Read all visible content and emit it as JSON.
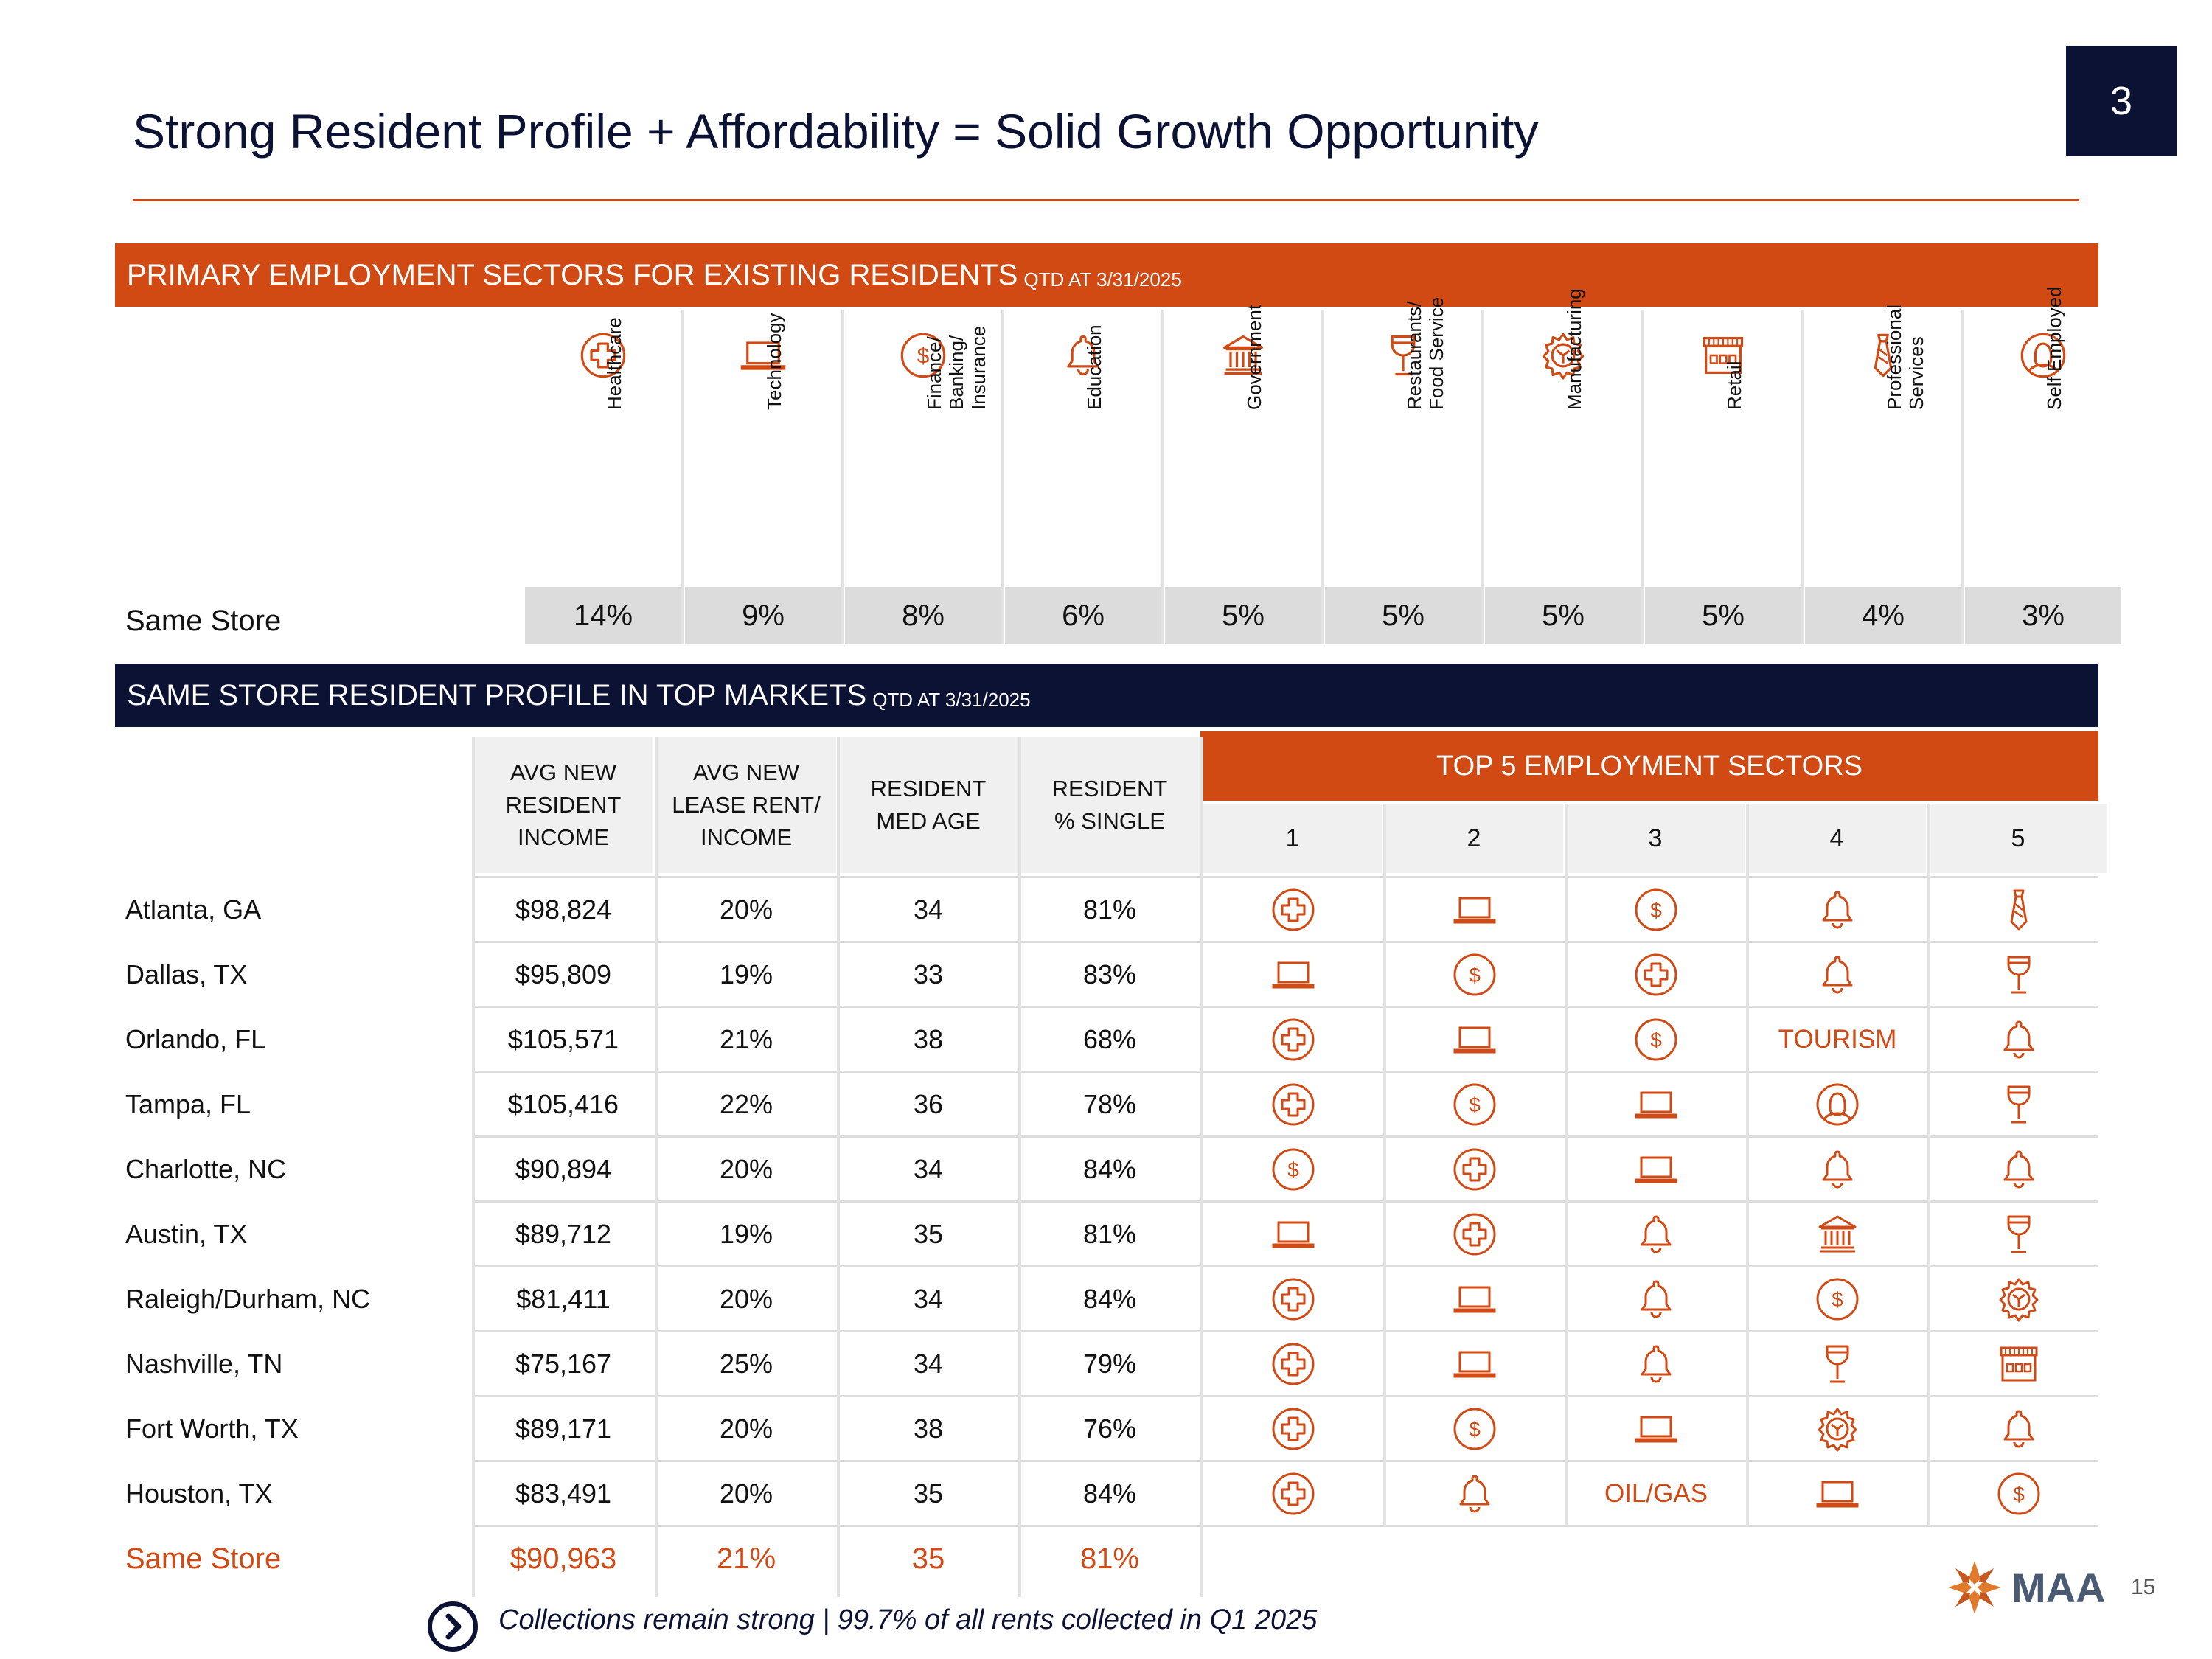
{
  "section_number": "3",
  "title": "Strong Resident Profile + Affordability = Solid Growth Opportunity",
  "primary_banner": {
    "main": "PRIMARY EMPLOYMENT SECTORS FOR EXISTING RESIDENTS",
    "sub": "QTD AT 3/31/2025"
  },
  "sectors": [
    {
      "icon": "medical-cross-icon",
      "label": "Healthcare",
      "value": "14%"
    },
    {
      "icon": "laptop-icon",
      "label": "Technology",
      "value": "9%"
    },
    {
      "icon": "dollar-icon",
      "label": "Finance/\nBanking/\nInsurance",
      "value": "8%"
    },
    {
      "icon": "bell-icon",
      "label": "Education",
      "value": "6%"
    },
    {
      "icon": "government-building-icon",
      "label": "Government",
      "value": "5%"
    },
    {
      "icon": "wine-glass-icon",
      "label": "Restaurants/\nFood Service",
      "value": "5%"
    },
    {
      "icon": "gear-icon",
      "label": "Manufacturing",
      "value": "5%"
    },
    {
      "icon": "storefront-icon",
      "label": "Retail",
      "value": "5%"
    },
    {
      "icon": "necktie-icon",
      "label": "Professional\nServices",
      "value": "4%"
    },
    {
      "icon": "person-icon",
      "label": "Self Employed",
      "value": "3%"
    }
  ],
  "same_store_label": "Same Store",
  "profile_banner": {
    "main": "SAME STORE RESIDENT PROFILE IN TOP MARKETS",
    "sub": "QTD AT 3/31/2025"
  },
  "profile_headers": [
    "AVG NEW\nRESIDENT\nINCOME",
    "AVG NEW\nLEASE RENT/\nINCOME",
    "RESIDENT\nMED AGE",
    "RESIDENT\n% SINGLE"
  ],
  "top5_header": "TOP 5 EMPLOYMENT SECTORS",
  "ranks": [
    "1",
    "2",
    "3",
    "4",
    "5"
  ],
  "markets": [
    {
      "name": "Atlanta, GA",
      "income": "$98,824",
      "rent_income": "20%",
      "age": "34",
      "single": "81%",
      "top5": [
        "medical-cross-icon",
        "laptop-icon",
        "dollar-icon",
        "bell-icon",
        "necktie-icon"
      ]
    },
    {
      "name": "Dallas, TX",
      "income": "$95,809",
      "rent_income": "19%",
      "age": "33",
      "single": "83%",
      "top5": [
        "laptop-icon",
        "dollar-icon",
        "medical-cross-icon",
        "bell-icon",
        "wine-glass-icon"
      ]
    },
    {
      "name": "Orlando, FL",
      "income": "$105,571",
      "rent_income": "21%",
      "age": "38",
      "single": "68%",
      "top5": [
        "medical-cross-icon",
        "laptop-icon",
        "dollar-icon",
        "TOURISM",
        "bell-icon"
      ]
    },
    {
      "name": "Tampa, FL",
      "income": "$105,416",
      "rent_income": "22%",
      "age": "36",
      "single": "78%",
      "top5": [
        "medical-cross-icon",
        "dollar-icon",
        "laptop-icon",
        "person-icon",
        "wine-glass-icon"
      ]
    },
    {
      "name": "Charlotte, NC",
      "income": "$90,894",
      "rent_income": "20%",
      "age": "34",
      "single": "84%",
      "top5": [
        "dollar-icon",
        "medical-cross-icon",
        "laptop-icon",
        "bell-icon",
        "bell-icon"
      ]
    },
    {
      "name": "Austin, TX",
      "income": "$89,712",
      "rent_income": "19%",
      "age": "35",
      "single": "81%",
      "top5": [
        "laptop-icon",
        "medical-cross-icon",
        "bell-icon",
        "government-building-icon",
        "wine-glass-icon"
      ]
    },
    {
      "name": "Raleigh/Durham, NC",
      "income": "$81,411",
      "rent_income": "20%",
      "age": "34",
      "single": "84%",
      "top5": [
        "medical-cross-icon",
        "laptop-icon",
        "bell-icon",
        "dollar-icon",
        "gear-icon"
      ]
    },
    {
      "name": "Nashville, TN",
      "income": "$75,167",
      "rent_income": "25%",
      "age": "34",
      "single": "79%",
      "top5": [
        "medical-cross-icon",
        "laptop-icon",
        "bell-icon",
        "wine-glass-icon",
        "storefront-icon"
      ]
    },
    {
      "name": "Fort Worth, TX",
      "income": "$89,171",
      "rent_income": "20%",
      "age": "38",
      "single": "76%",
      "top5": [
        "medical-cross-icon",
        "dollar-icon",
        "laptop-icon",
        "gear-icon",
        "bell-icon"
      ]
    },
    {
      "name": "Houston, TX",
      "income": "$83,491",
      "rent_income": "20%",
      "age": "35",
      "single": "84%",
      "top5": [
        "medical-cross-icon",
        "bell-icon",
        "OIL/GAS",
        "laptop-icon",
        "dollar-icon"
      ]
    }
  ],
  "same_store_total": {
    "name": "Same Store",
    "income": "$90,963",
    "rent_income": "21%",
    "age": "35",
    "single": "81%"
  },
  "footer_note": "Collections remain strong | 99.7% of all rents collected in Q1 2025",
  "logo_text": "MAA",
  "page_number": "15",
  "colors": {
    "accent": "#d14a14",
    "navy": "#0c1233",
    "gray_cell": "#dcdcdc"
  }
}
